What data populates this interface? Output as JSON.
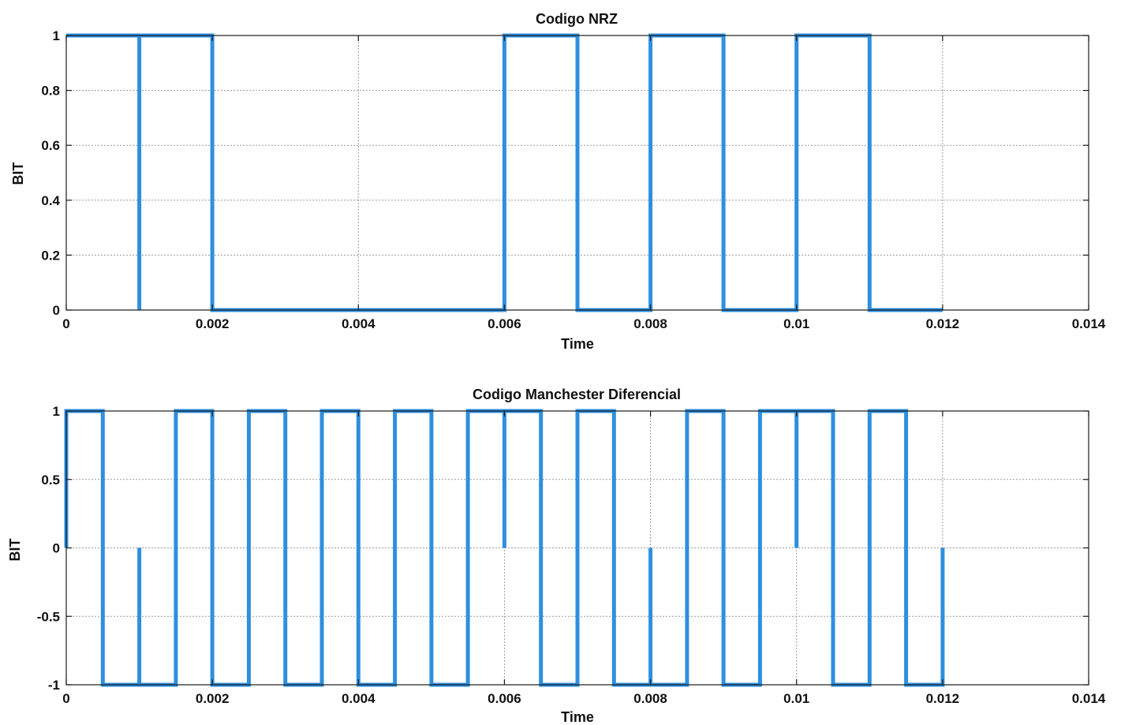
{
  "chart_data": [
    {
      "type": "line",
      "title": "Codigo NRZ",
      "xlabel": "Time",
      "ylabel": "BIT",
      "xlim": [
        0,
        0.014
      ],
      "ylim": [
        0,
        1
      ],
      "xticks": [
        0,
        0.002,
        0.004,
        0.006,
        0.008,
        0.01,
        0.012,
        0.014
      ],
      "xtick_labels": [
        "0",
        "0.002",
        "0.004",
        "0.006",
        "0.008",
        "0.01",
        "0.012",
        "0.014"
      ],
      "yticks": [
        0,
        0.2,
        0.4,
        0.6,
        0.8,
        1
      ],
      "ytick_labels": [
        "0",
        "0.2",
        "0.4",
        "0.6",
        "0.8",
        "1"
      ],
      "grid": true,
      "color": "#2e8fdf",
      "series": [
        {
          "x": [
            0,
            0.001,
            0.001,
            0.001,
            0.001,
            0.002,
            0.002,
            0.006,
            0.006,
            0.007,
            0.007,
            0.008,
            0.008,
            0.009,
            0.009,
            0.01,
            0.01,
            0.011,
            0.011,
            0.012
          ],
          "y": [
            1,
            1,
            0,
            0,
            1,
            1,
            0,
            0,
            1,
            1,
            0,
            0,
            1,
            1,
            0,
            0,
            1,
            1,
            0,
            0
          ]
        }
      ]
    },
    {
      "type": "line",
      "title": "Codigo Manchester Diferencial",
      "xlabel": "Time",
      "ylabel": "BIT",
      "xlim": [
        0,
        0.014
      ],
      "ylim": [
        -1,
        1
      ],
      "xticks": [
        0,
        0.002,
        0.004,
        0.006,
        0.008,
        0.01,
        0.012,
        0.014
      ],
      "xtick_labels": [
        "0",
        "0.002",
        "0.004",
        "0.006",
        "0.008",
        "0.01",
        "0.012",
        "0.014"
      ],
      "yticks": [
        -1,
        -0.5,
        0,
        0.5,
        1
      ],
      "ytick_labels": [
        "-1",
        "-0.5",
        "0",
        "0.5",
        "1"
      ],
      "grid": true,
      "color": "#2e8fdf",
      "series": [
        {
          "x": [
            0,
            0,
            0.0005,
            0.0005,
            0.001,
            0.001,
            0.001,
            0.001,
            0.0015,
            0.0015,
            0.002,
            0.002,
            0.0025,
            0.0025,
            0.003,
            0.003,
            0.0035,
            0.0035,
            0.004,
            0.004,
            0.0045,
            0.0045,
            0.005,
            0.005,
            0.0055,
            0.0055,
            0.006,
            0.006,
            0.006,
            0.0065,
            0.0065,
            0.007,
            0.007,
            0.0075,
            0.0075,
            0.008,
            0.008,
            0.008,
            0.0085,
            0.0085,
            0.009,
            0.009,
            0.0095,
            0.0095,
            0.01,
            0.01,
            0.01,
            0.0105,
            0.0105,
            0.011,
            0.011,
            0.0115,
            0.0115,
            0.012,
            0.012
          ],
          "y": [
            0,
            1,
            1,
            -1,
            -1,
            0,
            -1,
            -1,
            -1,
            1,
            1,
            -1,
            -1,
            1,
            1,
            -1,
            -1,
            1,
            1,
            -1,
            -1,
            1,
            1,
            -1,
            -1,
            1,
            1,
            0,
            1,
            1,
            -1,
            -1,
            1,
            1,
            -1,
            -1,
            0,
            -1,
            -1,
            1,
            1,
            -1,
            -1,
            1,
            1,
            0,
            1,
            1,
            -1,
            -1,
            1,
            1,
            -1,
            -1,
            0
          ]
        }
      ]
    }
  ]
}
